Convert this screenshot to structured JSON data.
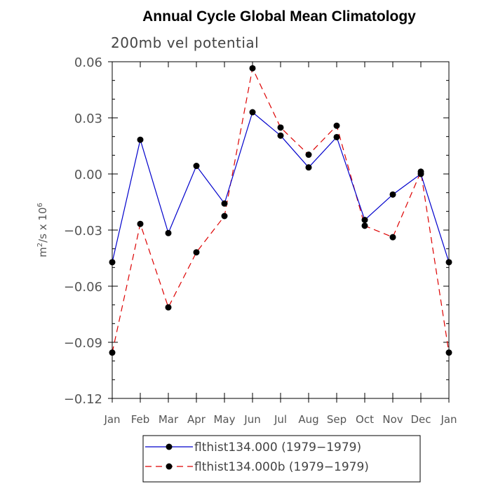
{
  "chart_data": {
    "type": "line",
    "title": "Annual Cycle Global Mean Climatology",
    "subtitle": "200mb vel potential",
    "ylabel": {
      "base": "m",
      "sup1": "2",
      "mid": "/s x 10",
      "sup2": "6"
    },
    "xlabel": "",
    "ylim": [
      -0.12,
      0.06
    ],
    "yticks": [
      -0.12,
      -0.09,
      -0.06,
      -0.03,
      0.0,
      0.03,
      0.06
    ],
    "ytick_labels": [
      "−0.12",
      "−0.09",
      "−0.06",
      "−0.03",
      "0.00",
      "0.03",
      "0.06"
    ],
    "categories": [
      "Jan",
      "Feb",
      "Mar",
      "Apr",
      "May",
      "Jun",
      "Jul",
      "Aug",
      "Sep",
      "Oct",
      "Nov",
      "Dec",
      "Jan"
    ],
    "series": [
      {
        "name": "flthist134.000 (1979−1979)",
        "color": "#0000cc",
        "dash": "solid",
        "values": [
          -0.0472,
          0.0183,
          -0.0316,
          0.0043,
          -0.0158,
          0.033,
          0.0205,
          0.0035,
          0.0197,
          -0.0246,
          -0.011,
          0.0,
          -0.0472
        ]
      },
      {
        "name": "flthist134.000b (1979−1979)",
        "color": "#dd0000",
        "dash": "dashed",
        "values": [
          -0.0955,
          -0.0267,
          -0.0713,
          -0.0419,
          -0.0225,
          0.0565,
          0.0248,
          0.0103,
          0.0258,
          -0.0277,
          -0.0338,
          0.0012,
          -0.0955
        ]
      }
    ]
  }
}
